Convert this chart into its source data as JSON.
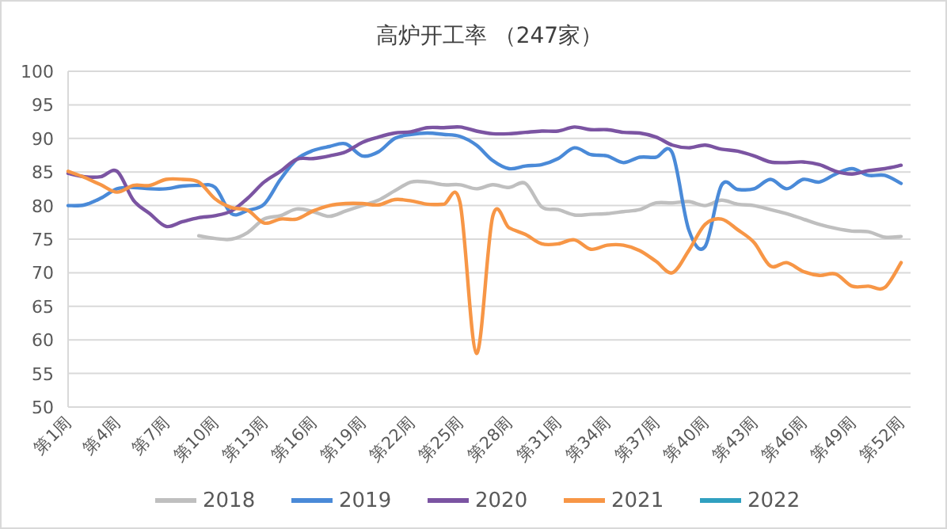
{
  "chart_data": {
    "type": "line",
    "title": "高炉开工率 （247家）",
    "categories": [
      "第1周",
      null,
      null,
      "第4周",
      null,
      null,
      "第7周",
      null,
      null,
      "第10周",
      null,
      null,
      "第13周",
      null,
      null,
      "第16周",
      null,
      null,
      "第19周",
      null,
      null,
      "第22周",
      null,
      null,
      "第25周",
      null,
      null,
      "第28周",
      null,
      null,
      "第31周",
      null,
      null,
      "第34周",
      null,
      null,
      "第37周",
      null,
      null,
      "第40周",
      null,
      null,
      "第43周",
      null,
      null,
      "第46周",
      null,
      null,
      "第49周",
      null,
      null,
      "第52周"
    ],
    "ylim": [
      50,
      100
    ],
    "yticks": [
      50,
      55,
      60,
      65,
      70,
      75,
      80,
      85,
      90,
      95,
      100
    ],
    "grid": "y",
    "legend": "bottom",
    "marker": "none",
    "line_style": "solid",
    "series": [
      {
        "name": "2018",
        "color": "#bfbfbf",
        "values": [
          null,
          null,
          null,
          null,
          null,
          null,
          null,
          null,
          75.5,
          75.1,
          75,
          76,
          78,
          78.5,
          79.5,
          79.1,
          78.4,
          79.2,
          80,
          80.8,
          82.2,
          83.5,
          83.5,
          83.1,
          83.1,
          82.5,
          83.1,
          82.7,
          83.3,
          79.8,
          79.4,
          78.6,
          78.7,
          78.8,
          79.1,
          79.4,
          80.4,
          80.4,
          80.6,
          80,
          80.8,
          80.2,
          80,
          79.4,
          78.8,
          78,
          77.2,
          76.6,
          76.2,
          76.1,
          75.3,
          75.4
        ]
      },
      {
        "name": "2019",
        "color": "#4a8ad8",
        "values": [
          80,
          80.1,
          81.1,
          82.5,
          82.7,
          82.5,
          82.5,
          82.9,
          83,
          82.7,
          78.8,
          79.3,
          80.2,
          83.9,
          86.9,
          88.2,
          88.8,
          89.2,
          87.4,
          88,
          90,
          90.6,
          90.8,
          90.6,
          90.3,
          89,
          86.7,
          85.5,
          85.9,
          86.1,
          87,
          88.6,
          87.6,
          87.4,
          86.4,
          87.2,
          87.2,
          87.8,
          76.4,
          73.9,
          83,
          82.4,
          82.5,
          83.9,
          82.5,
          83.9,
          83.5,
          84.7,
          85.5,
          84.5,
          84.5,
          83.3
        ]
      },
      {
        "name": "2020",
        "color": "#7b54a2",
        "values": [
          84.8,
          84.3,
          84.3,
          85.1,
          80.8,
          78.8,
          76.9,
          77.6,
          78.2,
          78.5,
          79.2,
          81.1,
          83.5,
          85.1,
          86.9,
          87,
          87.4,
          88,
          89.4,
          90.2,
          90.8,
          91,
          91.6,
          91.6,
          91.7,
          91.1,
          90.7,
          90.7,
          90.9,
          91.1,
          91.1,
          91.7,
          91.3,
          91.3,
          90.9,
          90.8,
          90.2,
          89,
          88.6,
          89,
          88.4,
          88.1,
          87.4,
          86.5,
          86.4,
          86.5,
          86.1,
          85.1,
          84.7,
          85.2,
          85.5,
          86
        ]
      },
      {
        "name": "2021",
        "color": "#f79646",
        "values": [
          85.1,
          84.2,
          83.1,
          82,
          83,
          83,
          83.9,
          83.9,
          83.5,
          81,
          79.7,
          79.3,
          77.4,
          78,
          78,
          79.2,
          80,
          80.3,
          80.3,
          80.1,
          80.9,
          80.7,
          80.2,
          80.2,
          80.4,
          58,
          78.4,
          76.7,
          75.7,
          74.3,
          74.3,
          74.9,
          73.5,
          74.1,
          74.1,
          73.3,
          71.7,
          70,
          73.3,
          77.2,
          78,
          76.4,
          74.5,
          71,
          71.5,
          70.2,
          69.6,
          69.8,
          68,
          68,
          67.8,
          71.5
        ]
      },
      {
        "name": "2022",
        "color": "#30a0c0",
        "values": [
          null,
          null,
          null,
          null,
          null,
          null,
          null,
          null,
          null,
          null,
          null,
          null,
          null,
          null,
          null,
          null,
          null,
          null,
          null,
          null,
          null,
          null,
          null,
          null,
          null,
          null,
          null,
          null,
          null,
          null,
          null,
          null,
          null,
          null,
          null,
          null,
          null,
          null,
          null,
          null,
          null,
          null,
          null,
          null,
          null,
          null,
          null,
          null,
          null,
          null,
          null,
          null
        ]
      }
    ]
  }
}
